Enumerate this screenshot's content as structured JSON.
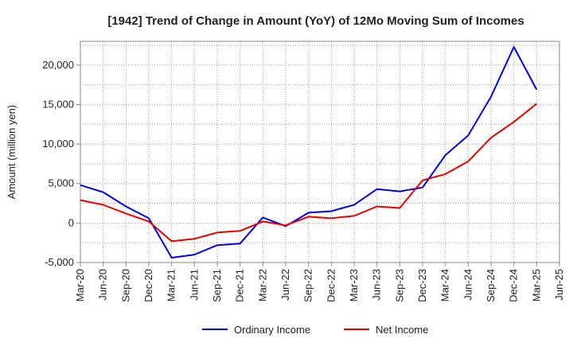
{
  "chart_data": {
    "type": "line",
    "title": "[1942]  Trend of Change in Amount (YoY) of 12Mo Moving Sum of Incomes",
    "xlabel": "",
    "ylabel": "Amount (million yen)",
    "ylim": [
      -5000,
      23000
    ],
    "yticks": [
      -5000,
      0,
      5000,
      10000,
      15000,
      20000
    ],
    "ytick_labels": [
      "-5,000",
      "0",
      "5,000",
      "10,000",
      "15,000",
      "20,000"
    ],
    "grid": true,
    "legend_position": "bottom",
    "x": [
      "Mar-20",
      "Jun-20",
      "Sep-20",
      "Dec-20",
      "Mar-21",
      "Jun-21",
      "Sep-21",
      "Dec-21",
      "Mar-22",
      "Jun-22",
      "Sep-22",
      "Dec-22",
      "Mar-23",
      "Jun-23",
      "Sep-23",
      "Dec-23",
      "Mar-24",
      "Jun-24",
      "Sep-24",
      "Dec-24",
      "Mar-25",
      "Jun-25"
    ],
    "series": [
      {
        "name": "Ordinary Income",
        "color": "#0000dd",
        "values": [
          4800,
          3900,
          2100,
          600,
          -4400,
          -4000,
          -2800,
          -2600,
          700,
          -400,
          1300,
          1500,
          2300,
          4300,
          4000,
          4500,
          8600,
          11100,
          16000,
          22300,
          16900,
          null
        ]
      },
      {
        "name": "Net Income",
        "color": "#dd0000",
        "values": [
          2900,
          2300,
          1200,
          200,
          -2300,
          -2000,
          -1200,
          -1000,
          200,
          -300,
          800,
          600,
          900,
          2100,
          1900,
          5400,
          6200,
          7800,
          10800,
          12800,
          15100,
          null
        ]
      }
    ]
  }
}
